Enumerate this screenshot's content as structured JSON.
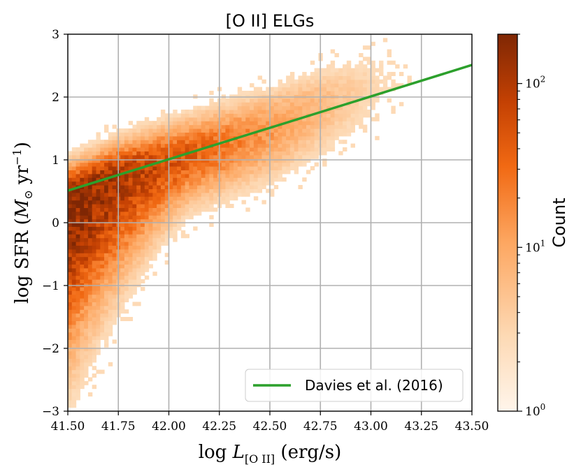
{
  "chart_data": {
    "type": "heatmap",
    "title": "[O II] ELGs",
    "xlabel": "log L[O II] (erg/s)",
    "ylabel": "log SFR (M⊙ yr−1)",
    "xlim": [
      41.5,
      43.5
    ],
    "ylim": [
      -3,
      3
    ],
    "x_ticks": [
      "41.50",
      "41.75",
      "42.00",
      "42.25",
      "42.50",
      "42.75",
      "43.00",
      "43.25",
      "43.50"
    ],
    "y_ticks": [
      "3",
      "2",
      "1",
      "0",
      "−1",
      "−2",
      "−3"
    ],
    "grid": true,
    "colorbar": {
      "label": "Count",
      "scale": "log",
      "range": [
        1,
        200
      ],
      "ticks": [
        {
          "value": 1,
          "base": "10",
          "exp": "0"
        },
        {
          "value": 10,
          "base": "10",
          "exp": "1"
        },
        {
          "value": 100,
          "base": "10",
          "exp": "2"
        }
      ],
      "colors": [
        "#fff5eb",
        "#fdd0a2",
        "#fd8d3c",
        "#d94801",
        "#a63603",
        "#7f2704"
      ]
    },
    "density": {
      "description": "2D histogram of log SFR vs log L[O II]",
      "ridge": [
        {
          "x": 41.5,
          "y": 0.4
        },
        {
          "x": 41.75,
          "y": 0.75
        },
        {
          "x": 42.0,
          "y": 1.0
        },
        {
          "x": 42.25,
          "y": 1.25
        },
        {
          "x": 42.5,
          "y": 1.5
        },
        {
          "x": 42.75,
          "y": 1.85
        }
      ],
      "x_extent": [
        41.5,
        43.3
      ],
      "peak_count": 200
    },
    "series": [
      {
        "name": "Davies et al. (2016)",
        "type": "line",
        "color": "#2ca02c",
        "x": [
          41.5,
          43.5
        ],
        "y": [
          0.51,
          2.51
        ]
      }
    ],
    "legend": {
      "position": "lower-right",
      "entries": [
        "Davies et al. (2016)"
      ]
    }
  }
}
